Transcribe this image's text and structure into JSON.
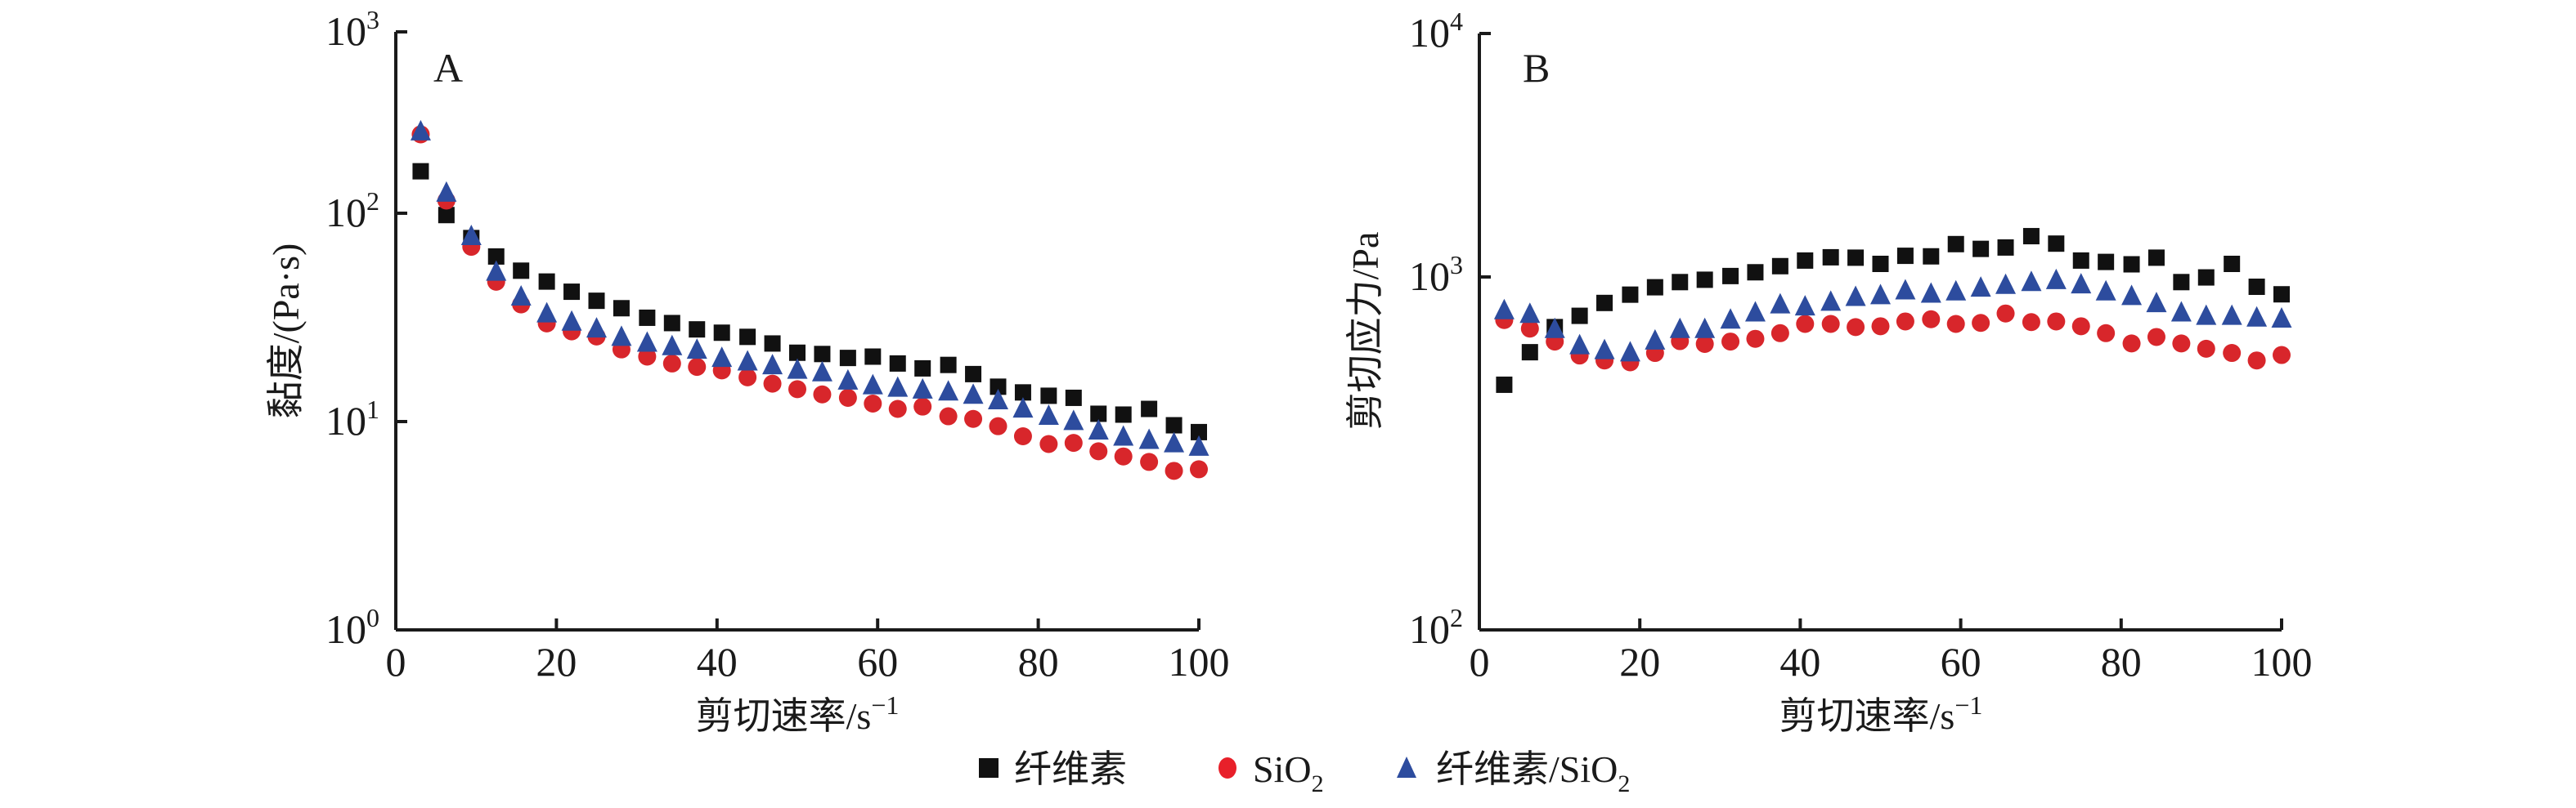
{
  "chart_data": [
    {
      "type": "scatter",
      "panel_label": "A",
      "xlabel": "剪切速率/s",
      "xlabel_sup": "−1",
      "ylabel": "黏度/(Pa·s)",
      "xlim": [
        0,
        100
      ],
      "ylim": [
        1,
        1000
      ],
      "yscale": "log",
      "xticks": [
        0,
        20,
        40,
        60,
        80,
        100
      ],
      "yticks": [
        {
          "value": 1,
          "base": "10",
          "exp": "0"
        },
        {
          "value": 10,
          "base": "10",
          "exp": "1"
        },
        {
          "value": 100,
          "base": "10",
          "exp": "2"
        },
        {
          "value": 1000,
          "base": "10",
          "exp": "3"
        }
      ],
      "grid": false,
      "x": [
        3.1,
        6.3,
        9.4,
        12.5,
        15.6,
        18.8,
        21.9,
        25,
        28.1,
        31.3,
        34.4,
        37.5,
        40.6,
        43.8,
        46.9,
        50,
        53.1,
        56.3,
        59.4,
        62.5,
        65.6,
        68.8,
        71.9,
        75,
        78.1,
        81.3,
        84.4,
        87.5,
        90.6,
        93.8,
        96.9,
        100
      ],
      "series": [
        {
          "name": "纤维素",
          "marker": "square",
          "color": "#111111",
          "values": [
            159,
            98,
            76,
            62,
            53,
            47,
            42,
            38,
            35,
            31.5,
            29.7,
            27.7,
            26.7,
            25.5,
            23.7,
            21.4,
            21.1,
            20.2,
            20.5,
            19.0,
            18.0,
            18.7,
            16.9,
            14.7,
            13.8,
            13.3,
            13.0,
            10.9,
            10.8,
            11.5,
            9.6,
            8.9
          ]
        },
        {
          "name": "SiO2",
          "marker": "circle",
          "color": "#d8262b",
          "values": [
            239,
            115,
            69,
            46.9,
            36.5,
            29.6,
            27.1,
            25.6,
            22.2,
            20.5,
            19.0,
            18.3,
            17.6,
            16.3,
            15.2,
            14.3,
            13.5,
            13.0,
            12.2,
            11.5,
            11.8,
            10.6,
            10.3,
            9.5,
            8.5,
            7.8,
            7.9,
            7.2,
            6.8,
            6.4,
            5.8,
            5.9
          ]
        },
        {
          "name": "纤维素/SiO2",
          "marker": "triangle",
          "color": "#2d4c9e",
          "values": [
            248,
            126,
            78,
            52.6,
            40,
            33.2,
            30.3,
            28.1,
            25.6,
            24.0,
            23.1,
            22.2,
            20.3,
            19.5,
            18.7,
            17.8,
            17.3,
            15.8,
            15.0,
            14.6,
            14.3,
            14.0,
            13.5,
            12.7,
            11.6,
            10.7,
            10.1,
            9.1,
            8.5,
            8.2,
            7.9,
            7.6
          ]
        }
      ]
    },
    {
      "type": "scatter",
      "panel_label": "B",
      "xlabel": "剪切速率/s",
      "xlabel_sup": "−1",
      "ylabel": "剪切应力/Pa",
      "xlim": [
        0,
        100
      ],
      "ylim": [
        100,
        10000
      ],
      "yscale": "log",
      "xticks": [
        0,
        20,
        40,
        60,
        80,
        100
      ],
      "yticks": [
        {
          "value": 100,
          "base": "10",
          "exp": "2"
        },
        {
          "value": 1000,
          "base": "10",
          "exp": "3"
        },
        {
          "value": 10000,
          "base": "10",
          "exp": "4"
        }
      ],
      "grid": false,
      "x": [
        3.1,
        6.3,
        9.4,
        12.5,
        15.6,
        18.8,
        21.9,
        25,
        28.1,
        31.3,
        34.4,
        37.5,
        40.6,
        43.8,
        46.9,
        50,
        53.1,
        56.3,
        59.4,
        62.5,
        65.6,
        68.8,
        71.9,
        75,
        78.1,
        81.3,
        84.4,
        87.5,
        90.6,
        93.8,
        96.9,
        100
      ],
      "series": [
        {
          "name": "纤维素",
          "marker": "square",
          "color": "#111111",
          "values": [
            495,
            612,
            721,
            776,
            844,
            891,
            935,
            967,
            982,
            1006,
            1031,
            1073,
            1113,
            1137,
            1134,
            1089,
            1148,
            1144,
            1239,
            1201,
            1212,
            1305,
            1243,
            1113,
            1103,
            1086,
            1134,
            967,
            997,
            1089,
            938,
            893
          ]
        },
        {
          "name": "SiO2",
          "marker": "circle",
          "color": "#d8262b",
          "values": [
            755,
            714,
            656,
            599,
            580,
            573,
            609,
            658,
            646,
            656,
            668,
            693,
            736,
            736,
            721,
            725,
            748,
            759,
            736,
            741,
            788,
            745,
            748,
            725,
            693,
            648,
            676,
            648,
            626,
            609,
            580,
            601
          ]
        },
        {
          "name": "纤维素/SiO2",
          "marker": "triangle",
          "color": "#2d4c9e",
          "values": [
            807,
            788,
            714,
            642,
            622,
            613,
            662,
            714,
            714,
            759,
            795,
            838,
            827,
            853,
            880,
            890,
            918,
            899,
            912,
            935,
            952,
            970,
            982,
            955,
            912,
            885,
            845,
            795,
            778,
            778,
            769,
            764
          ]
        }
      ]
    }
  ],
  "legend": {
    "placement": "bottom-center",
    "items": [
      {
        "marker": "square",
        "color": "#111111",
        "label": "纤维素",
        "sub": ""
      },
      {
        "marker": "circle",
        "color": "#e8202a",
        "label": "SiO",
        "sub": "2"
      },
      {
        "marker": "triangle",
        "color": "#2d4c9e",
        "label": "纤维素/SiO",
        "sub": "2"
      }
    ]
  }
}
